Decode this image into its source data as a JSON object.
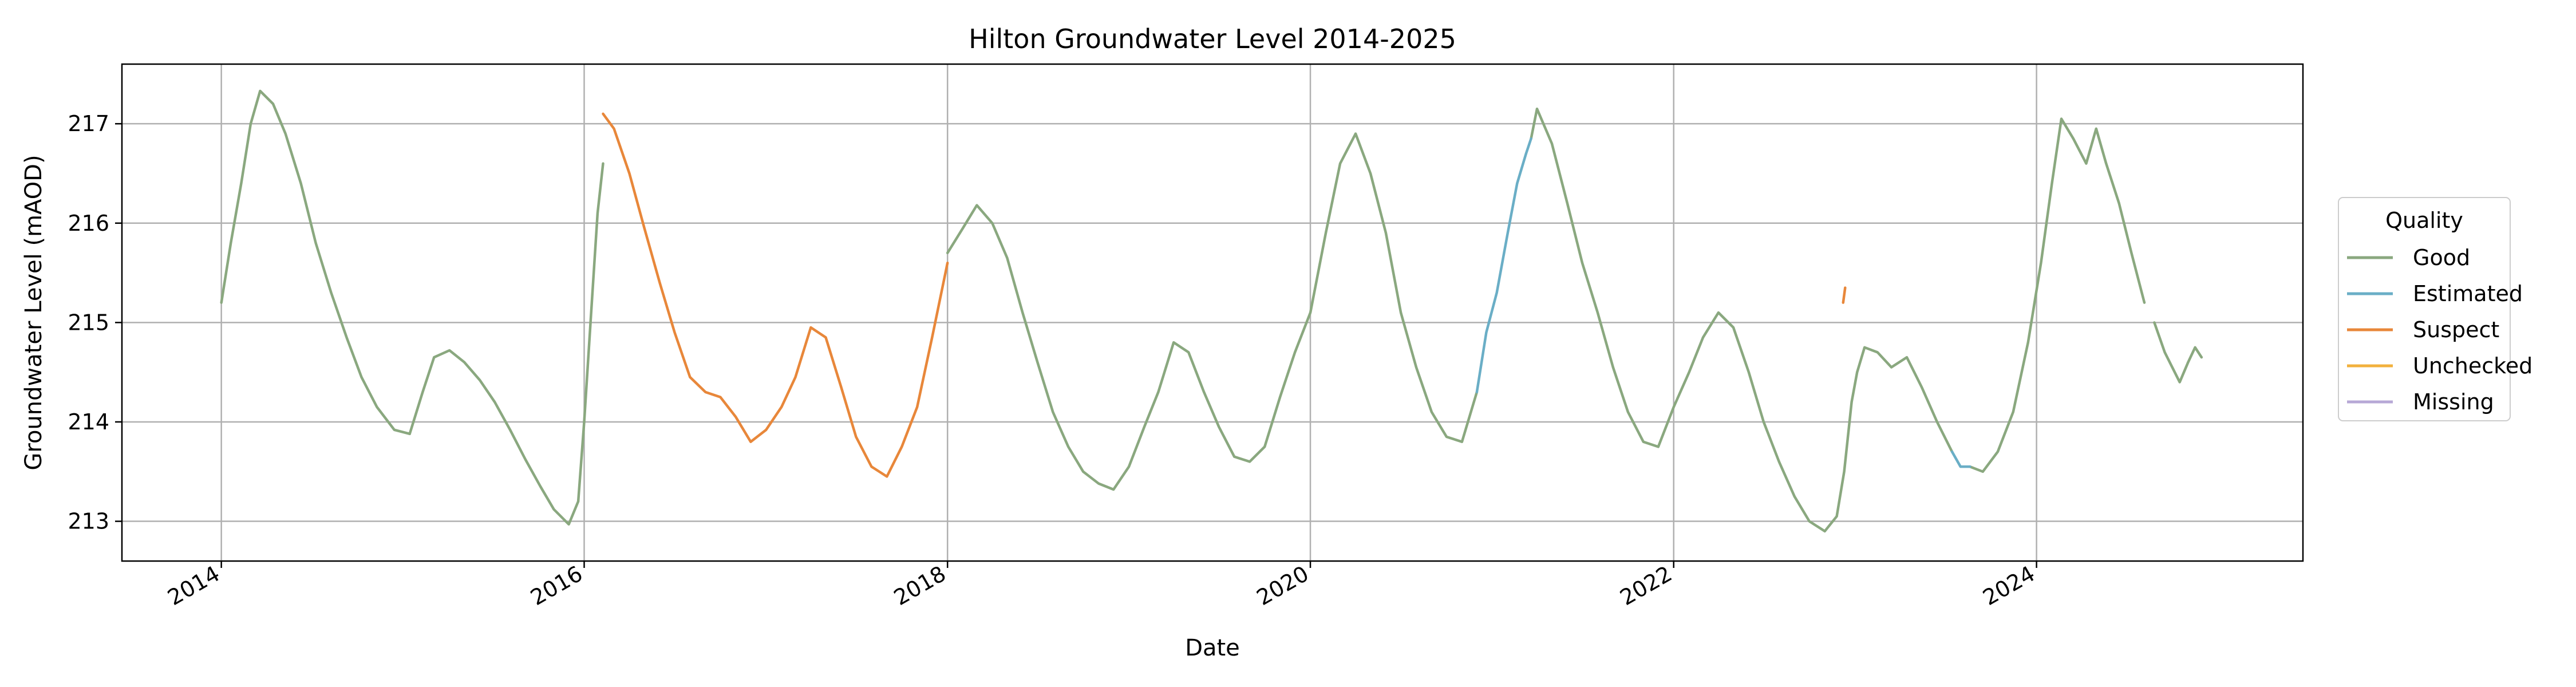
{
  "chart_data": {
    "type": "line",
    "title": "Hilton Groundwater Level 2014-2025",
    "xlabel": "Date",
    "ylabel": "Groundwater Level (mAOD)",
    "x_ticks": [
      "2014",
      "2016",
      "2018",
      "2020",
      "2022",
      "2024"
    ],
    "y_ticks": [
      213,
      214,
      215,
      216,
      217
    ],
    "xlim": [
      "2013-06-15",
      "2025-06-20"
    ],
    "ylim": [
      212.6,
      217.6
    ],
    "grid": true,
    "legend": {
      "title": "Quality",
      "placement": "right"
    },
    "series": [
      {
        "name": "Good",
        "color": "#8aa87f",
        "segments": [
          [
            [
              "2014-01-01",
              215.2
            ],
            [
              "2014-01-20",
              215.8
            ],
            [
              "2014-02-10",
              216.4
            ],
            [
              "2014-03-01",
              217.0
            ],
            [
              "2014-03-20",
              217.33
            ],
            [
              "2014-04-15",
              217.2
            ],
            [
              "2014-05-10",
              216.9
            ],
            [
              "2014-06-10",
              216.4
            ],
            [
              "2014-07-10",
              215.8
            ],
            [
              "2014-08-10",
              215.3
            ],
            [
              "2014-09-10",
              214.85
            ],
            [
              "2014-10-10",
              214.45
            ],
            [
              "2014-11-10",
              214.15
            ],
            [
              "2014-12-15",
              213.92
            ],
            [
              "2015-01-15",
              213.88
            ],
            [
              "2015-02-10",
              214.3
            ],
            [
              "2015-03-05",
              214.65
            ],
            [
              "2015-04-05",
              214.72
            ],
            [
              "2015-05-05",
              214.6
            ],
            [
              "2015-06-05",
              214.42
            ],
            [
              "2015-07-05",
              214.2
            ],
            [
              "2015-08-05",
              213.92
            ],
            [
              "2015-09-05",
              213.62
            ],
            [
              "2015-10-05",
              213.35
            ],
            [
              "2015-11-01",
              213.12
            ],
            [
              "2015-12-01",
              212.97
            ],
            [
              "2015-12-20",
              213.2
            ],
            [
              "2016-01-01",
              214.0
            ],
            [
              "2016-01-15",
              215.1
            ],
            [
              "2016-01-28",
              216.1
            ],
            [
              "2016-02-08",
              216.6
            ]
          ],
          [
            [
              "2018-01-01",
              215.7
            ],
            [
              "2018-02-01",
              215.95
            ],
            [
              "2018-03-01",
              216.18
            ],
            [
              "2018-04-01",
              216.0
            ],
            [
              "2018-05-01",
              215.65
            ],
            [
              "2018-06-01",
              215.1
            ],
            [
              "2018-07-01",
              214.6
            ],
            [
              "2018-08-01",
              214.1
            ],
            [
              "2018-09-01",
              213.75
            ],
            [
              "2018-10-01",
              213.5
            ],
            [
              "2018-11-01",
              213.38
            ],
            [
              "2018-12-01",
              213.32
            ],
            [
              "2019-01-01",
              213.55
            ],
            [
              "2019-02-01",
              213.95
            ],
            [
              "2019-03-01",
              214.3
            ],
            [
              "2019-04-01",
              214.8
            ],
            [
              "2019-05-01",
              214.7
            ],
            [
              "2019-06-01",
              214.3
            ],
            [
              "2019-07-01",
              213.95
            ],
            [
              "2019-08-01",
              213.65
            ],
            [
              "2019-09-01",
              213.6
            ],
            [
              "2019-10-01",
              213.75
            ],
            [
              "2019-11-01",
              214.25
            ],
            [
              "2019-12-01",
              214.7
            ],
            [
              "2020-01-01",
              215.1
            ],
            [
              "2020-02-01",
              215.9
            ],
            [
              "2020-03-01",
              216.6
            ],
            [
              "2020-04-01",
              216.9
            ],
            [
              "2020-05-01",
              216.5
            ],
            [
              "2020-06-01",
              215.9
            ],
            [
              "2020-07-01",
              215.1
            ],
            [
              "2020-08-01",
              214.55
            ],
            [
              "2020-09-01",
              214.1
            ],
            [
              "2020-10-01",
              213.85
            ],
            [
              "2020-11-01",
              213.8
            ],
            [
              "2020-12-01",
              214.3
            ]
          ],
          [
            [
              "2021-03-20",
              216.85
            ],
            [
              "2021-04-01",
              217.15
            ],
            [
              "2021-05-01",
              216.8
            ],
            [
              "2021-06-01",
              216.2
            ],
            [
              "2021-07-01",
              215.6
            ],
            [
              "2021-08-01",
              215.1
            ],
            [
              "2021-09-01",
              214.55
            ],
            [
              "2021-10-01",
              214.1
            ],
            [
              "2021-11-01",
              213.8
            ],
            [
              "2021-12-01",
              213.75
            ],
            [
              "2022-01-01",
              214.15
            ],
            [
              "2022-02-01",
              214.5
            ],
            [
              "2022-03-01",
              214.85
            ],
            [
              "2022-04-01",
              215.1
            ],
            [
              "2022-05-01",
              214.95
            ],
            [
              "2022-06-01",
              214.5
            ],
            [
              "2022-07-01",
              214.0
            ],
            [
              "2022-08-01",
              213.6
            ],
            [
              "2022-09-01",
              213.25
            ],
            [
              "2022-10-01",
              213.0
            ],
            [
              "2022-11-01",
              212.9
            ],
            [
              "2022-11-25",
              213.05
            ],
            [
              "2022-12-10",
              213.5
            ],
            [
              "2022-12-25",
              214.2
            ],
            [
              "2023-01-05",
              214.5
            ],
            [
              "2023-01-20",
              214.75
            ],
            [
              "2023-02-15",
              214.7
            ],
            [
              "2023-03-15",
              214.55
            ],
            [
              "2023-04-15",
              214.65
            ],
            [
              "2023-05-15",
              214.35
            ],
            [
              "2023-06-15",
              214.0
            ],
            [
              "2023-07-15",
              213.7
            ]
          ],
          [
            [
              "2023-08-20",
              213.55
            ],
            [
              "2023-09-15",
              213.5
            ],
            [
              "2023-10-15",
              213.7
            ],
            [
              "2023-11-15",
              214.1
            ],
            [
              "2023-12-15",
              214.8
            ],
            [
              "2024-01-10",
              215.6
            ],
            [
              "2024-02-01",
              216.4
            ],
            [
              "2024-02-20",
              217.05
            ],
            [
              "2024-03-15",
              216.85
            ],
            [
              "2024-04-10",
              216.6
            ],
            [
              "2024-04-30",
              216.95
            ],
            [
              "2024-05-20",
              216.6
            ],
            [
              "2024-06-15",
              216.2
            ],
            [
              "2024-07-10",
              215.7
            ],
            [
              "2024-08-05",
              215.2
            ]
          ],
          [
            [
              "2024-08-25",
              215.0
            ],
            [
              "2024-09-15",
              214.7
            ],
            [
              "2024-10-15",
              214.4
            ],
            [
              "2024-11-01",
              214.6
            ],
            [
              "2024-11-15",
              214.75
            ],
            [
              "2024-11-28",
              214.65
            ]
          ]
        ]
      },
      {
        "name": "Estimated",
        "color": "#6aaec6",
        "segments": [
          [
            [
              "2020-12-01",
              214.3
            ],
            [
              "2020-12-20",
              214.9
            ],
            [
              "2021-01-10",
              215.3
            ],
            [
              "2021-02-01",
              215.9
            ],
            [
              "2021-02-20",
              216.4
            ],
            [
              "2021-03-10",
              216.7
            ],
            [
              "2021-03-20",
              216.85
            ]
          ],
          [
            [
              "2023-07-15",
              213.7
            ],
            [
              "2023-08-01",
              213.55
            ],
            [
              "2023-08-20",
              213.55
            ]
          ]
        ]
      },
      {
        "name": "Suspect",
        "color": "#e8873a",
        "segments": [
          [
            [
              "2016-02-08",
              217.1
            ],
            [
              "2016-03-01",
              216.95
            ],
            [
              "2016-04-01",
              216.5
            ],
            [
              "2016-05-01",
              215.95
            ],
            [
              "2016-06-01",
              215.4
            ],
            [
              "2016-07-01",
              214.9
            ],
            [
              "2016-08-01",
              214.45
            ],
            [
              "2016-09-01",
              214.3
            ],
            [
              "2016-10-01",
              214.25
            ],
            [
              "2016-11-01",
              214.05
            ],
            [
              "2016-12-01",
              213.8
            ],
            [
              "2017-01-01",
              213.92
            ],
            [
              "2017-02-01",
              214.15
            ],
            [
              "2017-03-01",
              214.45
            ],
            [
              "2017-04-01",
              214.95
            ],
            [
              "2017-05-01",
              214.85
            ],
            [
              "2017-06-01",
              214.35
            ],
            [
              "2017-07-01",
              213.85
            ],
            [
              "2017-08-01",
              213.55
            ],
            [
              "2017-09-01",
              213.45
            ],
            [
              "2017-10-01",
              213.75
            ],
            [
              "2017-11-01",
              214.15
            ],
            [
              "2017-12-01",
              214.85
            ],
            [
              "2018-01-01",
              215.6
            ]
          ],
          [
            [
              "2022-12-08",
              215.2
            ],
            [
              "2022-12-12",
              215.35
            ]
          ]
        ]
      },
      {
        "name": "Unchecked",
        "color": "#f2b13d",
        "segments": []
      },
      {
        "name": "Missing",
        "color": "#b7a8d6",
        "segments": []
      }
    ]
  }
}
